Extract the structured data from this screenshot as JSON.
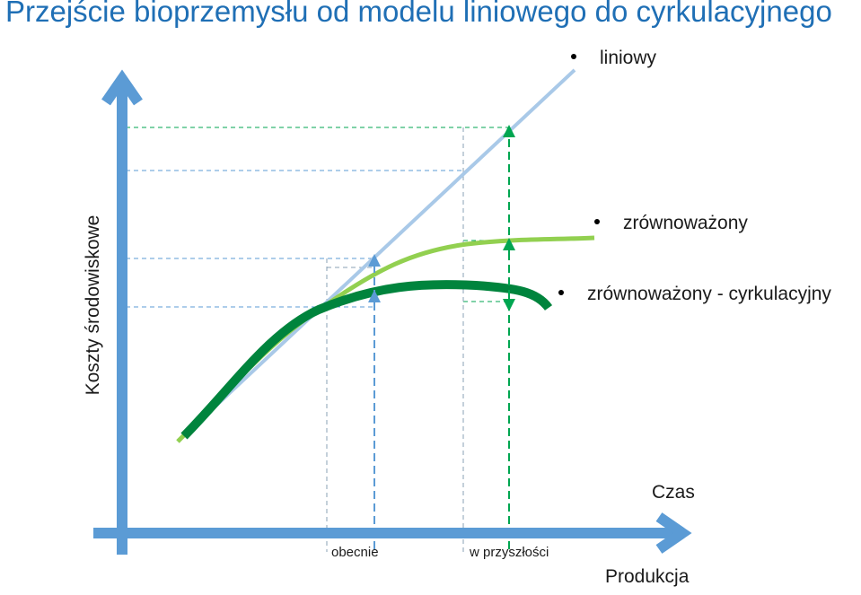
{
  "title": "Przejście bioprzemysłu od modelu liniowego do cyrkulacyjnego",
  "y_axis_label": "Koszty środowiskowe",
  "x_axis_label_upper": "Czas",
  "x_axis_label_lower": "Produkcja",
  "x_markers": {
    "now": "obecnie",
    "future": "w przyszłości"
  },
  "legend": {
    "linear": "liniowy",
    "sustainable": "zrównoważony",
    "circular": "zrównoważony - cyrkulacyjny"
  },
  "colors": {
    "title": "#1f6fb5",
    "axis": "#5b9bd5",
    "linear": "#a9c9e8",
    "sustainable": "#92d050",
    "circular": "#00843d",
    "guide_blue": "#5b9bd5",
    "guide_green": "#00a651"
  }
}
